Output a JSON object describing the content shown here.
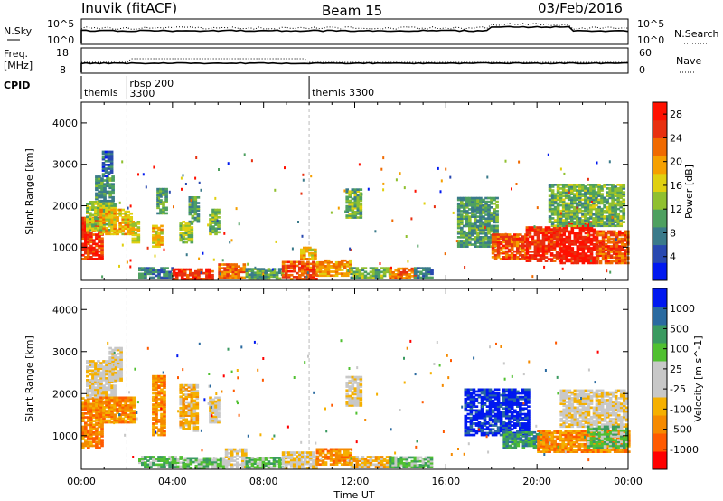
{
  "header": {
    "station": "Inuvik (fitACF)",
    "beam": "Beam 15",
    "date": "03/Feb/2016"
  },
  "side_labels": {
    "nsky": "N.Sky",
    "nsky_hi": "10^5",
    "nsky_lo": "10^0",
    "nsearch": "N.Search",
    "nsearch_hi": "10^5",
    "nsearch_lo": "10^0",
    "freq_line1": "Freq.",
    "freq_line2": "[MHz]",
    "freq_hi": "18",
    "freq_lo": "8",
    "nave": "Nave",
    "nave_hi": "60",
    "nave_lo": "0",
    "cpid": "CPID"
  },
  "cpid_segments": [
    {
      "label": "themis",
      "start_hour": 0.0
    },
    {
      "label": "rbsp 200",
      "label2": "3300",
      "start_hour": 2.0
    },
    {
      "label": "themis 3300",
      "start_hour": 10.0
    }
  ],
  "colors": {
    "power_scale": [
      "#0018f0",
      "#2848b0",
      "#3a7a8a",
      "#4ea060",
      "#90c030",
      "#e0d010",
      "#f5a000",
      "#f06a00",
      "#e83010",
      "#ff1000"
    ],
    "velocity_scale": [
      "#ff0000",
      "#ff5a00",
      "#f58a00",
      "#f5b000",
      "#c8c8c8",
      "#c8c8c8",
      "#50c030",
      "#3a9a60",
      "#2a6aa0",
      "#0018f0"
    ],
    "tick_color": "#000000"
  },
  "chart_data": [
    {
      "type": "heatmap",
      "panel": "power",
      "xlabel": "",
      "ylabel": "Slant Range [km]",
      "x_range_hours": [
        0,
        24
      ],
      "ylim": [
        200,
        4500
      ],
      "colorbar_label": "Power [dB]",
      "colorbar_ticks": [
        "4",
        "8",
        "12",
        "16",
        "20",
        "24",
        "28"
      ],
      "colorbar_range": [
        0,
        30
      ],
      "yticks": [
        "1000",
        "2000",
        "3000",
        "4000"
      ],
      "blobs": [
        {
          "t0": 0.0,
          "t1": 0.9,
          "r0": 700,
          "r1": 1700,
          "v": 26
        },
        {
          "t0": 0.2,
          "t1": 1.5,
          "r0": 1400,
          "r1": 2100,
          "v": 14
        },
        {
          "t0": 0.8,
          "t1": 2.2,
          "r0": 1300,
          "r1": 1900,
          "v": 18
        },
        {
          "t0": 0.6,
          "t1": 1.4,
          "r0": 2100,
          "r1": 2700,
          "v": 10
        },
        {
          "t0": 0.9,
          "t1": 1.3,
          "r0": 2700,
          "r1": 3300,
          "v": 6
        },
        {
          "t0": 2.2,
          "t1": 2.5,
          "r0": 1100,
          "r1": 1600,
          "v": 16
        },
        {
          "t0": 3.1,
          "t1": 3.5,
          "r0": 1000,
          "r1": 1500,
          "v": 18
        },
        {
          "t0": 3.3,
          "t1": 3.7,
          "r0": 1800,
          "r1": 2400,
          "v": 10
        },
        {
          "t0": 4.3,
          "t1": 4.8,
          "r0": 1100,
          "r1": 1600,
          "v": 14
        },
        {
          "t0": 4.7,
          "t1": 5.1,
          "r0": 1600,
          "r1": 2200,
          "v": 10
        },
        {
          "t0": 5.6,
          "t1": 6.0,
          "r0": 1300,
          "r1": 1900,
          "v": 12
        },
        {
          "t0": 2.5,
          "t1": 4.0,
          "r0": 250,
          "r1": 500,
          "v": 8
        },
        {
          "t0": 4.0,
          "t1": 5.8,
          "r0": 220,
          "r1": 450,
          "v": 26
        },
        {
          "t0": 6.0,
          "t1": 7.2,
          "r0": 250,
          "r1": 600,
          "v": 22
        },
        {
          "t0": 7.2,
          "t1": 8.8,
          "r0": 230,
          "r1": 480,
          "v": 10
        },
        {
          "t0": 8.8,
          "t1": 10.3,
          "r0": 220,
          "r1": 650,
          "v": 24
        },
        {
          "t0": 10.3,
          "t1": 11.8,
          "r0": 300,
          "r1": 700,
          "v": 20
        },
        {
          "t0": 11.8,
          "t1": 13.5,
          "r0": 250,
          "r1": 500,
          "v": 12
        },
        {
          "t0": 13.5,
          "t1": 14.6,
          "r0": 240,
          "r1": 480,
          "v": 22
        },
        {
          "t0": 14.6,
          "t1": 15.4,
          "r0": 250,
          "r1": 520,
          "v": 8
        },
        {
          "t0": 16.5,
          "t1": 18.2,
          "r0": 1000,
          "r1": 2200,
          "v": 10
        },
        {
          "t0": 18.0,
          "t1": 19.5,
          "r0": 700,
          "r1": 1300,
          "v": 24
        },
        {
          "t0": 19.5,
          "t1": 21.0,
          "r0": 650,
          "r1": 1500,
          "v": 26
        },
        {
          "t0": 21.0,
          "t1": 22.6,
          "r0": 600,
          "r1": 1600,
          "v": 28
        },
        {
          "t0": 22.6,
          "t1": 24.0,
          "r0": 600,
          "r1": 1400,
          "v": 24
        },
        {
          "t0": 20.5,
          "t1": 23.8,
          "r0": 1500,
          "r1": 2500,
          "v": 12
        },
        {
          "t0": 11.6,
          "t1": 12.3,
          "r0": 1700,
          "r1": 2400,
          "v": 12
        },
        {
          "t0": 9.6,
          "t1": 10.3,
          "r0": 700,
          "r1": 1000,
          "v": 18
        }
      ]
    },
    {
      "type": "heatmap",
      "panel": "velocity",
      "xlabel": "Time UT",
      "ylabel": "Slant Range [km]",
      "x_range_hours": [
        0,
        24
      ],
      "ylim": [
        200,
        4500
      ],
      "colorbar_label": "Velocity [m s^-1]",
      "colorbar_ticks": [
        "-1000",
        "-500",
        "-100",
        "-25",
        "25",
        "100",
        "500",
        "1000"
      ],
      "yticks": [
        "1000",
        "2000",
        "3000",
        "4000"
      ],
      "xticks": [
        "00:00",
        "04:00",
        "08:00",
        "12:00",
        "16:00",
        "20:00",
        "00:00"
      ],
      "blobs": [
        {
          "t0": 0.0,
          "t1": 0.9,
          "r0": 700,
          "r1": 1900,
          "v": 2
        },
        {
          "t0": 0.2,
          "t1": 1.5,
          "r0": 1900,
          "r1": 2800,
          "v": 4
        },
        {
          "t0": 0.8,
          "t1": 2.3,
          "r0": 1300,
          "r1": 1900,
          "v": 2
        },
        {
          "t0": 1.2,
          "t1": 1.8,
          "r0": 2300,
          "r1": 3100,
          "v": 4
        },
        {
          "t0": 3.1,
          "t1": 3.6,
          "r0": 1000,
          "r1": 2400,
          "v": 2
        },
        {
          "t0": 4.3,
          "t1": 5.1,
          "r0": 1100,
          "r1": 2200,
          "v": 3
        },
        {
          "t0": 5.6,
          "t1": 6.0,
          "r0": 1300,
          "r1": 1900,
          "v": 4
        },
        {
          "t0": 2.5,
          "t1": 4.5,
          "r0": 250,
          "r1": 500,
          "v": 6
        },
        {
          "t0": 4.5,
          "t1": 6.3,
          "r0": 220,
          "r1": 450,
          "v": 6
        },
        {
          "t0": 6.3,
          "t1": 7.2,
          "r0": 250,
          "r1": 700,
          "v": 4
        },
        {
          "t0": 7.2,
          "t1": 8.8,
          "r0": 230,
          "r1": 480,
          "v": 6
        },
        {
          "t0": 8.8,
          "t1": 10.3,
          "r0": 220,
          "r1": 600,
          "v": 4
        },
        {
          "t0": 10.3,
          "t1": 11.8,
          "r0": 300,
          "r1": 700,
          "v": 2
        },
        {
          "t0": 11.8,
          "t1": 13.5,
          "r0": 250,
          "r1": 500,
          "v": 3
        },
        {
          "t0": 13.5,
          "t1": 15.4,
          "r0": 240,
          "r1": 500,
          "v": 6
        },
        {
          "t0": 16.8,
          "t1": 19.6,
          "r0": 1000,
          "r1": 2100,
          "v": 9
        },
        {
          "t0": 18.5,
          "t1": 20.5,
          "r0": 700,
          "r1": 1100,
          "v": 7
        },
        {
          "t0": 20.0,
          "t1": 24.0,
          "r0": 600,
          "r1": 1100,
          "v": 2
        },
        {
          "t0": 21.0,
          "t1": 24.0,
          "r0": 1200,
          "r1": 2100,
          "v": 4
        },
        {
          "t0": 22.2,
          "t1": 24.0,
          "r0": 700,
          "r1": 1200,
          "v": 6
        },
        {
          "t0": 11.6,
          "t1": 12.3,
          "r0": 1700,
          "r1": 2400,
          "v": 4
        }
      ]
    }
  ]
}
